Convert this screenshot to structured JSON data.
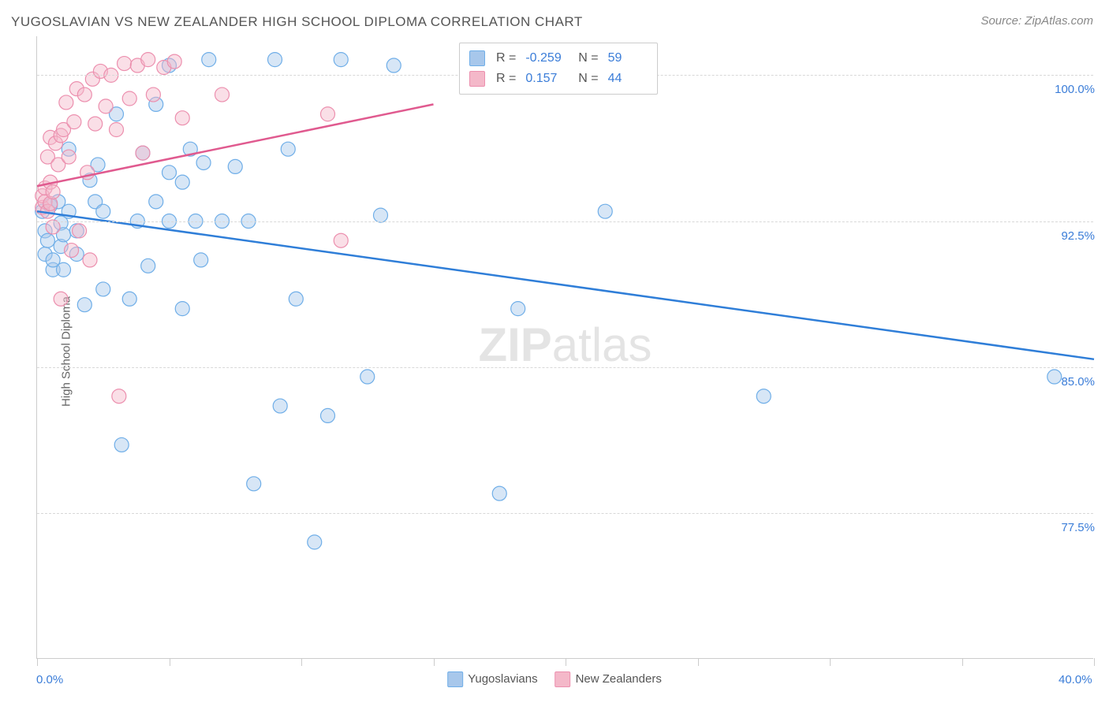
{
  "title": "YUGOSLAVIAN VS NEW ZEALANDER HIGH SCHOOL DIPLOMA CORRELATION CHART",
  "source": "Source: ZipAtlas.com",
  "ylabel": "High School Diploma",
  "watermark_bold": "ZIP",
  "watermark_rest": "atlas",
  "xmin_label": "0.0%",
  "xmax_label": "40.0%",
  "plot": {
    "type": "scatter",
    "xlim": [
      0,
      40
    ],
    "ylim": [
      70,
      102
    ],
    "y_gridlines": [
      77.5,
      85.0,
      92.5,
      100.0
    ],
    "y_tick_labels": [
      "77.5%",
      "85.0%",
      "92.5%",
      "100.0%"
    ],
    "x_ticks": [
      0,
      5,
      10,
      15,
      20,
      25,
      30,
      35,
      40
    ],
    "background_color": "#ffffff",
    "grid_color": "#d8d8d8",
    "axis_color": "#cccccc",
    "marker_radius": 9,
    "series": [
      {
        "name": "Yugoslavians",
        "color_fill": "#a7c7eb",
        "color_stroke": "#6faee8",
        "line_color": "#2f7ed8",
        "R": "-0.259",
        "N": "59",
        "trend": {
          "x1": 0,
          "y1": 93.0,
          "x2": 40,
          "y2": 85.4
        },
        "points": [
          [
            0.2,
            93.0
          ],
          [
            0.3,
            92.0
          ],
          [
            0.3,
            90.8
          ],
          [
            0.4,
            91.5
          ],
          [
            0.5,
            93.3
          ],
          [
            0.6,
            90.0
          ],
          [
            0.6,
            90.5
          ],
          [
            0.8,
            93.5
          ],
          [
            0.9,
            91.2
          ],
          [
            0.9,
            92.4
          ],
          [
            1.0,
            90.0
          ],
          [
            1.0,
            91.8
          ],
          [
            1.2,
            93.0
          ],
          [
            1.2,
            96.2
          ],
          [
            1.5,
            92.0
          ],
          [
            1.5,
            90.8
          ],
          [
            1.8,
            88.2
          ],
          [
            2.0,
            94.6
          ],
          [
            2.2,
            93.5
          ],
          [
            2.3,
            95.4
          ],
          [
            2.5,
            89.0
          ],
          [
            2.5,
            93.0
          ],
          [
            3.0,
            98.0
          ],
          [
            3.2,
            81.0
          ],
          [
            3.5,
            88.5
          ],
          [
            3.8,
            92.5
          ],
          [
            4.0,
            96.0
          ],
          [
            4.2,
            90.2
          ],
          [
            4.5,
            93.5
          ],
          [
            4.5,
            98.5
          ],
          [
            5.0,
            92.5
          ],
          [
            5.0,
            95.0
          ],
          [
            5.0,
            100.5
          ],
          [
            5.5,
            88.0
          ],
          [
            5.5,
            94.5
          ],
          [
            5.8,
            96.2
          ],
          [
            6.0,
            92.5
          ],
          [
            6.2,
            90.5
          ],
          [
            6.3,
            95.5
          ],
          [
            6.5,
            100.8
          ],
          [
            7.0,
            92.5
          ],
          [
            7.5,
            95.3
          ],
          [
            8.0,
            92.5
          ],
          [
            8.2,
            79.0
          ],
          [
            9.0,
            100.8
          ],
          [
            9.2,
            83.0
          ],
          [
            9.5,
            96.2
          ],
          [
            9.8,
            88.5
          ],
          [
            10.5,
            76.0
          ],
          [
            11.0,
            82.5
          ],
          [
            11.5,
            100.8
          ],
          [
            12.5,
            84.5
          ],
          [
            13.0,
            92.8
          ],
          [
            13.5,
            100.5
          ],
          [
            17.5,
            78.5
          ],
          [
            18.2,
            88.0
          ],
          [
            21.5,
            93.0
          ],
          [
            27.5,
            83.5
          ],
          [
            38.5,
            84.5
          ]
        ]
      },
      {
        "name": "New Zealanders",
        "color_fill": "#f4b8c9",
        "color_stroke": "#ec8fae",
        "line_color": "#e05a8f",
        "R": "0.157",
        "N": "44",
        "trend": {
          "x1": 0,
          "y1": 94.3,
          "x2": 15,
          "y2": 98.5
        },
        "points": [
          [
            0.2,
            93.2
          ],
          [
            0.2,
            93.8
          ],
          [
            0.3,
            93.5
          ],
          [
            0.3,
            94.2
          ],
          [
            0.4,
            93.0
          ],
          [
            0.4,
            95.8
          ],
          [
            0.5,
            94.5
          ],
          [
            0.5,
            96.8
          ],
          [
            0.5,
            93.4
          ],
          [
            0.6,
            94.0
          ],
          [
            0.6,
            92.2
          ],
          [
            0.7,
            96.5
          ],
          [
            0.8,
            95.4
          ],
          [
            0.9,
            96.9
          ],
          [
            0.9,
            88.5
          ],
          [
            1.0,
            97.2
          ],
          [
            1.1,
            98.6
          ],
          [
            1.2,
            95.8
          ],
          [
            1.3,
            91.0
          ],
          [
            1.4,
            97.6
          ],
          [
            1.5,
            99.3
          ],
          [
            1.6,
            92.0
          ],
          [
            1.8,
            99.0
          ],
          [
            1.9,
            95.0
          ],
          [
            2.0,
            90.5
          ],
          [
            2.1,
            99.8
          ],
          [
            2.2,
            97.5
          ],
          [
            2.4,
            100.2
          ],
          [
            2.6,
            98.4
          ],
          [
            2.8,
            100.0
          ],
          [
            3.0,
            97.2
          ],
          [
            3.1,
            83.5
          ],
          [
            3.3,
            100.6
          ],
          [
            3.5,
            98.8
          ],
          [
            3.8,
            100.5
          ],
          [
            4.0,
            96.0
          ],
          [
            4.2,
            100.8
          ],
          [
            4.4,
            99.0
          ],
          [
            4.8,
            100.4
          ],
          [
            5.2,
            100.7
          ],
          [
            5.5,
            97.8
          ],
          [
            7.0,
            99.0
          ],
          [
            11.0,
            98.0
          ],
          [
            11.5,
            91.5
          ]
        ]
      }
    ]
  },
  "legend_box": {
    "x_percent": 41,
    "y_value": 100
  },
  "legend_bottom": {
    "items": [
      "Yugoslavians",
      "New Zealanders"
    ]
  }
}
